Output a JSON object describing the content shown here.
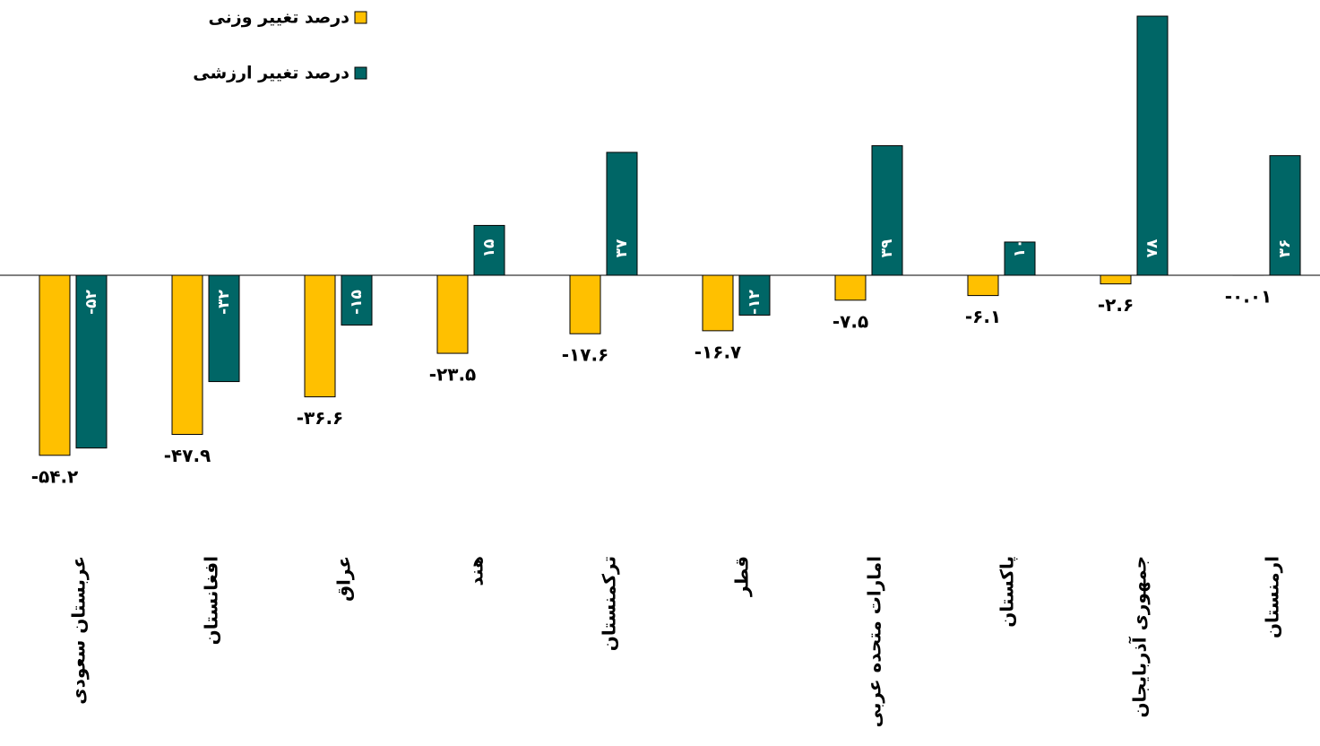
{
  "chart_data": {
    "type": "bar",
    "categories": [
      "عربستان سعودی",
      "افغانستان",
      "عراق",
      "هند",
      "ترکمنستان",
      "قطر",
      "امارات متحده عربی",
      "پاکستان",
      "جمهوری آذربایجان",
      "ارمنستان"
    ],
    "series": [
      {
        "name": "درصد تغییر وزنی",
        "color": "#ffc000",
        "values": [
          -54.2,
          -47.9,
          -36.6,
          -23.5,
          -17.6,
          -16.7,
          -7.5,
          -6.1,
          -2.6,
          -0.01
        ],
        "value_labels": [
          "-۵۴.۲",
          "-۴۷.۹",
          "-۳۶.۶",
          "-۲۳.۵",
          "-۱۷.۶",
          "-۱۶.۷",
          "-۷.۵",
          "-۶.۱",
          "-۲.۶",
          "-۰.۰۱"
        ]
      },
      {
        "name": "درصد تغییر ارزشی",
        "color": "#006666",
        "values": [
          -52,
          -32,
          -15,
          15,
          37,
          -12,
          39,
          10,
          78,
          36
        ],
        "value_labels": [
          "-۵۲",
          "-۳۲",
          "-۱۵",
          "۱۵",
          "۳۷",
          "-۱۲",
          "۳۹",
          "۱۰",
          "۷۸",
          "۳۶"
        ]
      }
    ],
    "ylim": [
      -60,
      80
    ],
    "grid": false
  }
}
